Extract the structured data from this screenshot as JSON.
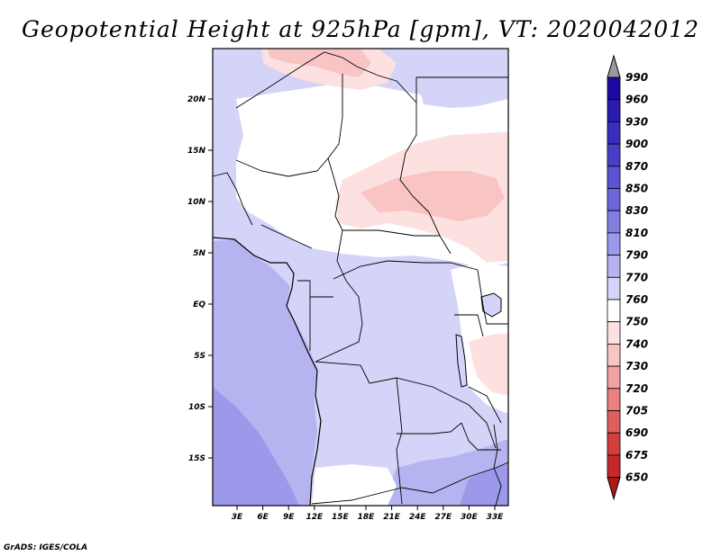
{
  "title": "Geopotential Height at 925hPa [gpm], VT: 2020042012",
  "credit": "GrADS: IGES/COLA",
  "map": {
    "lat_labels": [
      "20N",
      "15N",
      "10N",
      "5N",
      "EQ",
      "5S",
      "10S",
      "15S"
    ],
    "lon_labels": [
      "3E",
      "6E",
      "9E",
      "12E",
      "15E",
      "18E",
      "21E",
      "24E",
      "27E",
      "30E",
      "33E"
    ]
  },
  "colorbar": {
    "levels": [
      "990",
      "960",
      "930",
      "900",
      "870",
      "850",
      "830",
      "810",
      "790",
      "770",
      "760",
      "750",
      "740",
      "730",
      "720",
      "705",
      "690",
      "675",
      "650"
    ],
    "colors": [
      "#1c0aa0",
      "#2a1cb0",
      "#3a2cbe",
      "#4a3ec8",
      "#5a52d2",
      "#6d66da",
      "#837ee2",
      "#9c98ea",
      "#b6b4f0",
      "#d4d4f8",
      "#ffffff",
      "#fde0e0",
      "#f8c4c4",
      "#f2a2a2",
      "#ea8080",
      "#e05e5e",
      "#d43e3e",
      "#c62828",
      "#b01818"
    ]
  },
  "colors": {
    "ocean_deep": "#9c98ea",
    "land_pale_blue": "#d4d4f8",
    "land_white": "#ffffff",
    "land_pink": "#fde0e0",
    "land_pink2": "#f8c4c4",
    "land_blue2": "#b6b4f0"
  }
}
